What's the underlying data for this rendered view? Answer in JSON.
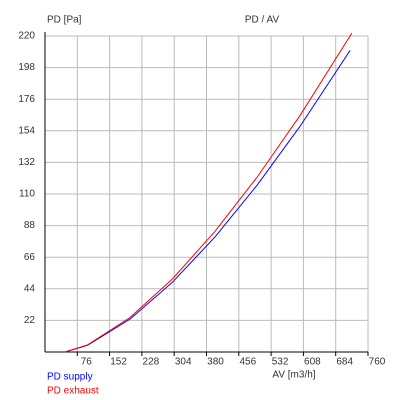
{
  "chart_data": {
    "type": "line",
    "title": "PD / AV",
    "y_label": "PD [Pa]",
    "x_label": "AV [m3/h]",
    "xlim": [
      0,
      760
    ],
    "xticks": [
      76,
      152,
      228,
      304,
      380,
      456,
      532,
      608,
      684,
      760
    ],
    "ylim": [
      0,
      220
    ],
    "yticks": [
      22,
      44,
      66,
      88,
      110,
      132,
      154,
      176,
      198,
      220
    ],
    "grid": true,
    "legend": "bottom-left",
    "series": [
      {
        "name": "PD supply",
        "color": "#0000ff",
        "x": [
          47,
          100,
          200,
          300,
          400,
          500,
          600,
          718
        ],
        "values": [
          0,
          4.7,
          22.9,
          48.6,
          80.1,
          116.5,
          157.1,
          210
        ]
      },
      {
        "name": "PD exhaust",
        "color": "#ff0000",
        "x": [
          47,
          100,
          200,
          300,
          400,
          500,
          600,
          722
        ],
        "values": [
          0,
          4.9,
          24.0,
          50.9,
          84.0,
          122.1,
          164.6,
          222
        ]
      }
    ]
  }
}
